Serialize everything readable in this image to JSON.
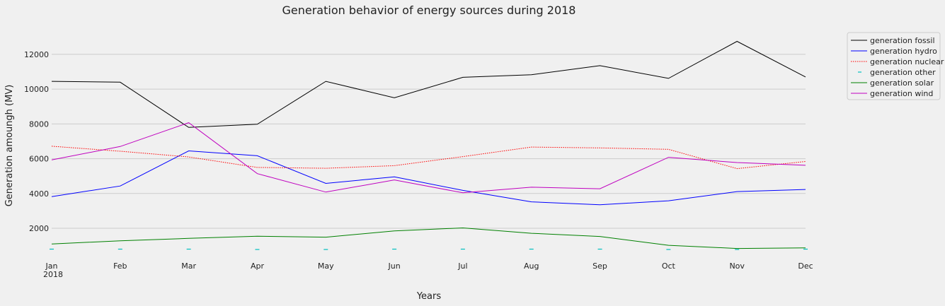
{
  "chart_data": {
    "type": "line",
    "title": "Generation behavior of energy sources during 2018",
    "xlabel": "Years",
    "ylabel": "Generation amoungh (MV)",
    "categories": [
      "Jan",
      "Feb",
      "Mar",
      "Apr",
      "May",
      "Jun",
      "Jul",
      "Aug",
      "Sep",
      "Oct",
      "Nov",
      "Dec"
    ],
    "year_label": "2018",
    "yticks": [
      2000,
      4000,
      6000,
      8000,
      10000,
      12000
    ],
    "ylim": [
      700,
      13500
    ],
    "grid": "horizontal",
    "legend_position": "top-right, outside",
    "series": [
      {
        "name": "generation fossil",
        "color": "#000000",
        "style": "solid",
        "values": [
          10450,
          10400,
          7800,
          7980,
          10450,
          9500,
          10680,
          10830,
          11350,
          10620,
          12750,
          10700
        ]
      },
      {
        "name": "generation hydro",
        "color": "#0000ff",
        "style": "solid",
        "values": [
          3820,
          4430,
          6450,
          6170,
          4580,
          4960,
          4180,
          3520,
          3350,
          3580,
          4110,
          4230
        ]
      },
      {
        "name": "generation nuclear",
        "color": "#ff0000",
        "style": "dotted",
        "values": [
          6720,
          6430,
          6100,
          5500,
          5450,
          5600,
          6120,
          6670,
          6620,
          6540,
          5430,
          5840
        ]
      },
      {
        "name": "generation other",
        "color": "#00bfbf",
        "style": "dash-marker",
        "values": [
          800,
          800,
          800,
          780,
          780,
          800,
          800,
          800,
          800,
          780,
          780,
          800
        ]
      },
      {
        "name": "generation solar",
        "color": "#008000",
        "style": "solid",
        "values": [
          1100,
          1280,
          1420,
          1540,
          1490,
          1850,
          2020,
          1710,
          1530,
          1020,
          840,
          870
        ]
      },
      {
        "name": "generation wind",
        "color": "#bf00bf",
        "style": "solid",
        "values": [
          5930,
          6700,
          8070,
          5140,
          4080,
          4780,
          4040,
          4360,
          4270,
          6080,
          5780,
          5620
        ]
      }
    ]
  }
}
